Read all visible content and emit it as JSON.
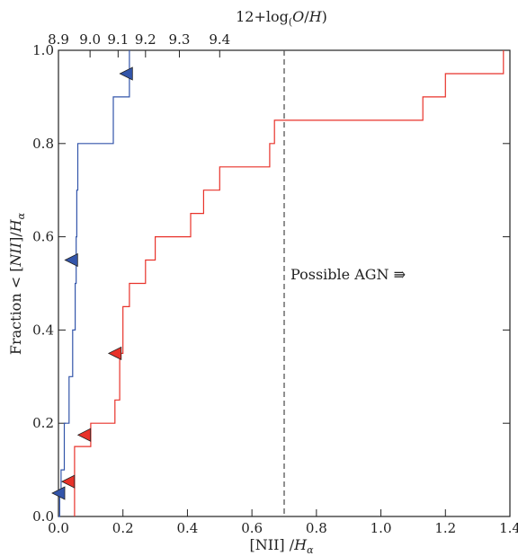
{
  "chart_data": {
    "type": "line",
    "subtype": "step-cdf",
    "xlabel": "[NII] /Hα",
    "ylabel": "Fraction < [NII]/Hα",
    "top_xlabel": "12+log(O/H)",
    "xlim": [
      0.0,
      1.4
    ],
    "ylim": [
      0.0,
      1.0
    ],
    "xticks": [
      0.0,
      0.2,
      0.4,
      0.6,
      0.8,
      1.0,
      1.2,
      1.4
    ],
    "xtick_labels": [
      "0.0",
      "0.2",
      "0.4",
      "0.6",
      "0.8",
      "1.0",
      "1.2",
      "1.4"
    ],
    "yticks": [
      0.0,
      0.2,
      0.4,
      0.6,
      0.8,
      1.0
    ],
    "ytick_labels": [
      "0.0",
      "0.2",
      "0.4",
      "0.6",
      "0.8",
      "1.0"
    ],
    "top_ticks": [
      {
        "label": "8.9",
        "x": 0.0
      },
      {
        "label": "9.0",
        "x": 0.098
      },
      {
        "label": "9.1",
        "x": 0.185
      },
      {
        "label": "9.2",
        "x": 0.27
      },
      {
        "label": "9.3",
        "x": 0.375
      },
      {
        "label": "9.4",
        "x": 0.5
      }
    ],
    "series": [
      {
        "color": "#3355aa",
        "steps": [
          [
            0.0,
            0.0
          ],
          [
            0.004,
            0.05
          ],
          [
            0.008,
            0.1
          ],
          [
            0.018,
            0.2
          ],
          [
            0.033,
            0.3
          ],
          [
            0.044,
            0.4
          ],
          [
            0.052,
            0.5
          ],
          [
            0.055,
            0.6
          ],
          [
            0.057,
            0.7
          ],
          [
            0.06,
            0.8
          ],
          [
            0.17,
            0.9
          ],
          [
            0.22,
            1.0
          ]
        ],
        "markers": [
          [
            0.0,
            0.05
          ],
          [
            0.04,
            0.55
          ],
          [
            0.21,
            0.95
          ]
        ]
      },
      {
        "color": "#e8322a",
        "steps": [
          [
            0.05,
            0.0
          ],
          [
            0.05,
            0.15
          ],
          [
            0.1,
            0.2
          ],
          [
            0.175,
            0.25
          ],
          [
            0.19,
            0.35
          ],
          [
            0.2,
            0.45
          ],
          [
            0.22,
            0.5
          ],
          [
            0.27,
            0.55
          ],
          [
            0.3,
            0.6
          ],
          [
            0.41,
            0.65
          ],
          [
            0.45,
            0.7
          ],
          [
            0.5,
            0.75
          ],
          [
            0.655,
            0.8
          ],
          [
            0.67,
            0.85
          ],
          [
            1.13,
            0.9
          ],
          [
            1.2,
            0.95
          ],
          [
            1.38,
            1.0
          ]
        ],
        "markers": [
          [
            0.03,
            0.075
          ],
          [
            0.08,
            0.175
          ],
          [
            0.175,
            0.35
          ]
        ]
      }
    ],
    "vline": {
      "x": 0.7,
      "style": "dashed",
      "color": "#555555"
    },
    "annotation": "Possible AGN ⇛",
    "grid": false,
    "legend": "none"
  }
}
